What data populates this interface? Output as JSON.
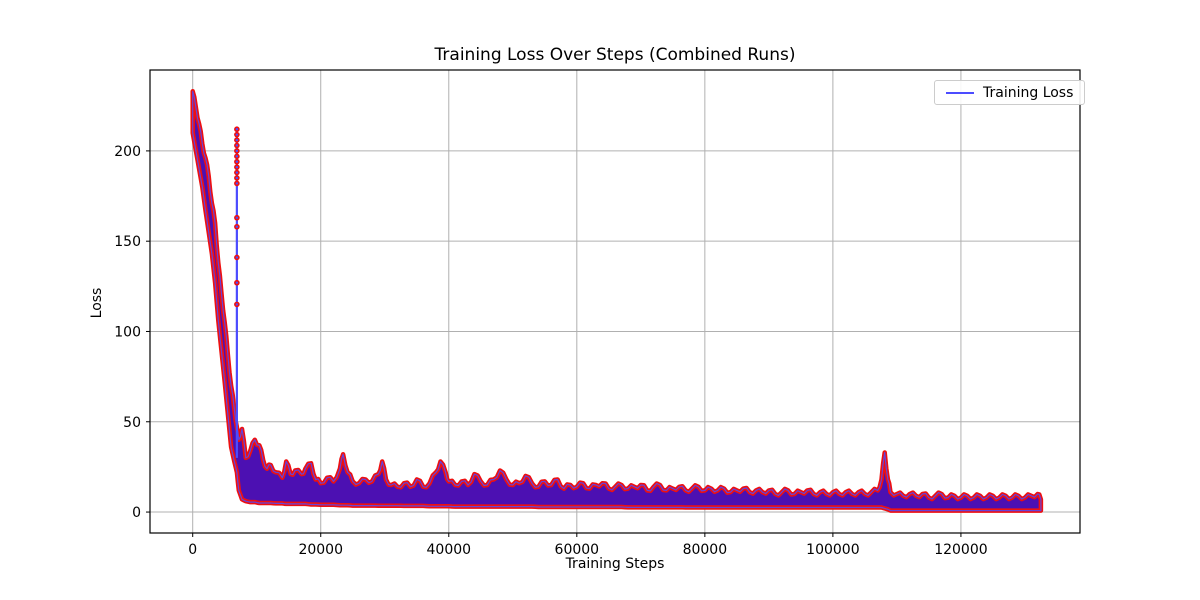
{
  "chart_data": {
    "type": "line",
    "title": "Training Loss Over Steps (Combined Runs)",
    "xlabel": "Training Steps",
    "ylabel": "Loss",
    "legend_position": "upper right",
    "grid": true,
    "series": [
      {
        "name": "Training Loss",
        "color": "#4C4CFF",
        "marker_color": "#EE1010"
      }
    ],
    "xlim": [
      -6670,
      138600
    ],
    "ylim": [
      -11.6,
      244.8
    ],
    "xticks": [
      0,
      20000,
      40000,
      60000,
      80000,
      100000,
      120000
    ],
    "xtick_labels": [
      "0",
      "20000",
      "40000",
      "60000",
      "80000",
      "100000",
      "120000"
    ],
    "yticks": [
      0,
      50,
      100,
      150,
      200
    ],
    "ytick_labels": [
      "0",
      "50",
      "100",
      "150",
      "200"
    ],
    "colors": {
      "line": "#4C4CFF",
      "marker_edge": "#EE1010",
      "band_fill": "#4C10B2",
      "grid": "#B0B0B0",
      "spine": "#000000",
      "background": "#FFFFFF",
      "legend_border": "#CCCCCC"
    },
    "band": [
      [
        0,
        210,
        233
      ],
      [
        500,
        200,
        224
      ],
      [
        1000,
        190,
        215
      ],
      [
        1500,
        180,
        204
      ],
      [
        2000,
        167,
        196
      ],
      [
        2500,
        155,
        186
      ],
      [
        3000,
        143,
        171
      ],
      [
        3500,
        127,
        160
      ],
      [
        4000,
        106,
        138
      ],
      [
        4500,
        89,
        121
      ],
      [
        5000,
        72,
        105
      ],
      [
        5500,
        54,
        87
      ],
      [
        6000,
        36,
        70
      ],
      [
        6500,
        28,
        57
      ],
      [
        6900,
        22,
        47
      ],
      [
        7200,
        12,
        40
      ],
      [
        7700,
        7,
        46
      ],
      [
        8300,
        6,
        30
      ],
      [
        9000,
        5.5,
        34
      ],
      [
        9700,
        5.5,
        40
      ],
      [
        10400,
        5,
        37
      ],
      [
        11000,
        5,
        29
      ],
      [
        11600,
        5,
        24
      ],
      [
        12200,
        5,
        26
      ],
      [
        13000,
        4.8,
        22
      ],
      [
        14000,
        4.8,
        19
      ],
      [
        14600,
        4.5,
        28
      ],
      [
        15300,
        4.5,
        21
      ],
      [
        16000,
        4.5,
        23
      ],
      [
        17000,
        4.5,
        21
      ],
      [
        17600,
        4.5,
        24
      ],
      [
        18500,
        4.2,
        27
      ],
      [
        19200,
        4.2,
        18
      ],
      [
        20000,
        4,
        16
      ],
      [
        21000,
        4,
        19
      ],
      [
        22000,
        4,
        17
      ],
      [
        23000,
        3.8,
        24
      ],
      [
        23500,
        3.8,
        32
      ],
      [
        24200,
        3.8,
        22
      ],
      [
        25000,
        3.6,
        17
      ],
      [
        26000,
        3.6,
        16
      ],
      [
        27000,
        3.6,
        18
      ],
      [
        28000,
        3.6,
        17
      ],
      [
        29000,
        3.5,
        21
      ],
      [
        29600,
        3.5,
        28
      ],
      [
        30200,
        3.5,
        18
      ],
      [
        31000,
        3.5,
        15
      ],
      [
        32000,
        3.5,
        14
      ],
      [
        33000,
        3.4,
        16
      ],
      [
        34000,
        3.4,
        14
      ],
      [
        35000,
        3.4,
        18
      ],
      [
        36000,
        3.4,
        14
      ],
      [
        37000,
        3.2,
        16
      ],
      [
        38000,
        3.2,
        22
      ],
      [
        38700,
        3.2,
        28
      ],
      [
        39500,
        3.2,
        22
      ],
      [
        40000,
        3.2,
        17
      ],
      [
        41000,
        3,
        15
      ],
      [
        42000,
        3,
        17
      ],
      [
        43000,
        3,
        15
      ],
      [
        44000,
        3,
        21
      ],
      [
        45000,
        3,
        17
      ],
      [
        46000,
        3,
        15
      ],
      [
        47000,
        3,
        18
      ],
      [
        48000,
        3,
        23
      ],
      [
        49000,
        3,
        18
      ],
      [
        50000,
        3,
        15
      ],
      [
        51000,
        3,
        16
      ],
      [
        52000,
        3,
        20
      ],
      [
        53000,
        3,
        16
      ],
      [
        54000,
        2.8,
        14
      ],
      [
        55000,
        2.8,
        17
      ],
      [
        56000,
        2.8,
        15
      ],
      [
        57000,
        2.8,
        18
      ],
      [
        58000,
        2.8,
        13
      ],
      [
        59000,
        2.8,
        15
      ],
      [
        60000,
        2.8,
        14
      ],
      [
        61000,
        2.8,
        16
      ],
      [
        62000,
        2.8,
        13
      ],
      [
        63000,
        2.8,
        15
      ],
      [
        64000,
        2.8,
        16
      ],
      [
        65000,
        2.8,
        13
      ],
      [
        66000,
        2.8,
        14
      ],
      [
        67000,
        2.8,
        15
      ],
      [
        68000,
        2.6,
        13
      ],
      [
        69000,
        2.6,
        14
      ],
      [
        70000,
        2.6,
        15
      ],
      [
        71000,
        2.6,
        12
      ],
      [
        72000,
        2.6,
        14
      ],
      [
        73000,
        2.6,
        15
      ],
      [
        74000,
        2.6,
        12
      ],
      [
        75000,
        2.6,
        13
      ],
      [
        76000,
        2.6,
        14
      ],
      [
        77000,
        2.5,
        12
      ],
      [
        78000,
        2.5,
        13
      ],
      [
        79000,
        2.5,
        14
      ],
      [
        80000,
        2.5,
        12
      ],
      [
        81000,
        2.5,
        13
      ],
      [
        82000,
        2.5,
        12
      ],
      [
        83000,
        2.5,
        13
      ],
      [
        84000,
        2.5,
        11
      ],
      [
        85000,
        2.5,
        12
      ],
      [
        86000,
        2.5,
        13
      ],
      [
        87000,
        2.5,
        11
      ],
      [
        88000,
        2.5,
        12
      ],
      [
        89000,
        2.5,
        11
      ],
      [
        90000,
        2.5,
        12
      ],
      [
        91000,
        2.5,
        10
      ],
      [
        92000,
        2.5,
        11
      ],
      [
        93000,
        2.5,
        12
      ],
      [
        94000,
        2.5,
        10
      ],
      [
        95000,
        2.5,
        11
      ],
      [
        96000,
        2.5,
        12
      ],
      [
        97000,
        2.5,
        10
      ],
      [
        98000,
        2.5,
        11
      ],
      [
        99000,
        2.5,
        10
      ],
      [
        100000,
        2.5,
        11
      ],
      [
        101000,
        2.5,
        10
      ],
      [
        102000,
        2.5,
        11
      ],
      [
        103000,
        2.5,
        10
      ],
      [
        104000,
        2.5,
        11
      ],
      [
        105000,
        2.5,
        10
      ],
      [
        106000,
        2.5,
        11
      ],
      [
        107000,
        2.5,
        12
      ],
      [
        107600,
        2.5,
        18
      ],
      [
        108100,
        2,
        33
      ],
      [
        108600,
        1.5,
        18
      ],
      [
        109000,
        0.8,
        11
      ],
      [
        110000,
        0.8,
        10
      ],
      [
        111000,
        0.8,
        9
      ],
      [
        112000,
        0.8,
        10
      ],
      [
        113000,
        0.8,
        9
      ],
      [
        114000,
        0.8,
        10
      ],
      [
        115000,
        0.8,
        8
      ],
      [
        116000,
        0.8,
        9
      ],
      [
        117000,
        0.8,
        10
      ],
      [
        118000,
        0.8,
        8
      ],
      [
        119000,
        0.8,
        9
      ],
      [
        120000,
        0.8,
        8
      ],
      [
        121000,
        0.8,
        9
      ],
      [
        122000,
        0.8,
        8
      ],
      [
        123000,
        0.8,
        9
      ],
      [
        124000,
        0.8,
        8
      ],
      [
        125000,
        0.8,
        9
      ],
      [
        126000,
        0.8,
        8
      ],
      [
        127000,
        0.8,
        9
      ],
      [
        128000,
        0.8,
        8
      ],
      [
        129000,
        0.8,
        9
      ],
      [
        130000,
        0.8,
        8
      ],
      [
        131000,
        0.8,
        9
      ],
      [
        132000,
        0.8,
        10
      ],
      [
        132500,
        0.8,
        7
      ]
    ],
    "spike": {
      "x": 6900,
      "y_top": 212,
      "y_base": 30,
      "dot_values": [
        212,
        209,
        206,
        203,
        200,
        197,
        194,
        191,
        188,
        185,
        182,
        163,
        158,
        141,
        127,
        115
      ]
    }
  }
}
